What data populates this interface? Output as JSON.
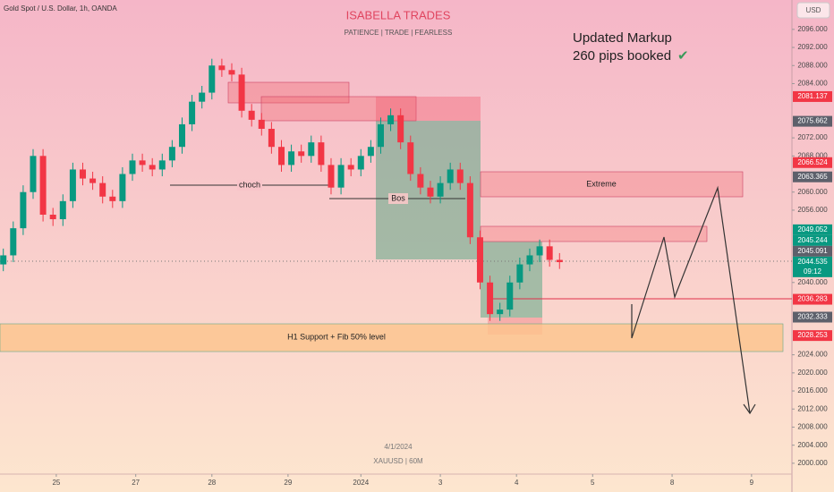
{
  "chart_data": {
    "type": "candlestick",
    "symbol": "Gold Spot / U.S. Dollar, 1h, OANDA",
    "title": "ISABELLA TRADES",
    "subtitle": "PATIENCE  |  TRADE  |  FEARLESS",
    "currency": "USD",
    "annotation": [
      "Updated Markup",
      "260 pips booked"
    ],
    "check": "✔",
    "labels": {
      "choch": "choch",
      "bos": "Bos",
      "extreme": "Extreme",
      "support": "H1 Support + Fib 50% level"
    },
    "footer": [
      "4/1/2024",
      "XAUUSD | 60M"
    ],
    "countdown": "09:12",
    "up_color": "#089981",
    "down_color": "#f23645",
    "xlim": [
      -17,
      222.2
    ],
    "xticks": [
      {
        "value": 0,
        "label": "25"
      },
      {
        "value": 24,
        "label": "27"
      },
      {
        "value": 47,
        "label": "28"
      },
      {
        "value": 70,
        "label": "29"
      },
      {
        "value": 92,
        "label": "2024"
      },
      {
        "value": 116,
        "label": "3"
      },
      {
        "value": 139,
        "label": "4"
      },
      {
        "value": 162,
        "label": "5"
      },
      {
        "value": 186,
        "label": "8"
      },
      {
        "value": 210,
        "label": "9"
      }
    ],
    "ylim": [
      1997.6,
      2102.5
    ],
    "yticks": [
      {
        "value": 2000,
        "label": "2000.000"
      },
      {
        "value": 2004,
        "label": "2004.000"
      },
      {
        "value": 2008,
        "label": "2008.000"
      },
      {
        "value": 2012,
        "label": "2012.000"
      },
      {
        "value": 2016,
        "label": "2016.000"
      },
      {
        "value": 2020,
        "label": "2020.000"
      },
      {
        "value": 2024,
        "label": "2024.000"
      },
      {
        "value": 2040,
        "label": "2040.000"
      },
      {
        "value": 2056,
        "label": "2056.000"
      },
      {
        "value": 2060,
        "label": "2060.000"
      },
      {
        "value": 2068,
        "label": "2068.000"
      },
      {
        "value": 2072,
        "label": "2072.000"
      },
      {
        "value": 2084,
        "label": "2084.000"
      },
      {
        "value": 2088,
        "label": "2088.000"
      },
      {
        "value": 2092,
        "label": "2092.000"
      },
      {
        "value": 2096,
        "label": "2096.000"
      }
    ],
    "x": [
      -16,
      -13,
      -10,
      -7,
      -4,
      -1,
      2,
      5,
      8,
      11,
      14,
      17,
      20,
      23,
      26,
      29,
      32,
      35,
      38,
      41,
      44,
      47,
      50,
      53,
      56,
      59,
      62,
      65,
      68,
      71,
      74,
      77,
      80,
      83,
      86,
      89,
      92,
      95,
      98,
      101,
      104,
      107,
      110,
      113,
      116,
      119,
      122,
      125,
      128,
      131,
      134,
      137,
      140,
      143,
      146,
      149,
      152
    ],
    "open": [
      2044,
      2046,
      2052,
      2060,
      2068,
      2055,
      2054,
      2058,
      2065,
      2063,
      2062,
      2059,
      2058,
      2064,
      2067,
      2066,
      2065,
      2067,
      2070,
      2075,
      2080,
      2082,
      2088,
      2087,
      2086,
      2078,
      2076,
      2074,
      2070,
      2066,
      2069,
      2068,
      2071,
      2066,
      2061,
      2066,
      2065,
      2068,
      2070,
      2075,
      2077,
      2071,
      2064,
      2061,
      2059,
      2062,
      2065,
      2062,
      2050,
      2040,
      2033,
      2034,
      2040,
      2044,
      2046,
      2048,
      2045
    ],
    "high": [
      2047.5,
      2053.5,
      2061.5,
      2069.5,
      2069.5,
      2056.5,
      2059.5,
      2066.5,
      2066.5,
      2064.5,
      2063.5,
      2060.5,
      2065.5,
      2068.5,
      2068.5,
      2067.5,
      2068.5,
      2071.5,
      2076.5,
      2081.5,
      2083.5,
      2089.5,
      2089.5,
      2088.5,
      2087.5,
      2079.5,
      2077.5,
      2075.5,
      2071.5,
      2070.5,
      2070.5,
      2072.5,
      2072.5,
      2067.5,
      2067.5,
      2067.5,
      2069.5,
      2071.5,
      2076.5,
      2078.5,
      2078.5,
      2072.5,
      2065.5,
      2062.5,
      2063.5,
      2066.5,
      2066.5,
      2063.5,
      2051.5,
      2041.5,
      2035.5,
      2041.5,
      2045.5,
      2047.5,
      2049.5,
      2049.5,
      2046.5
    ],
    "low": [
      2042.5,
      2044.5,
      2050.5,
      2058.5,
      2053.5,
      2052.5,
      2052.5,
      2056.5,
      2061.5,
      2060.5,
      2057.5,
      2056.5,
      2056.5,
      2062.5,
      2064.5,
      2063.5,
      2063.5,
      2065.5,
      2068.5,
      2073.5,
      2078.5,
      2080.5,
      2085.5,
      2084.5,
      2076.5,
      2074.5,
      2072.5,
      2068.5,
      2064.5,
      2064.5,
      2066.5,
      2066.5,
      2064.5,
      2059.5,
      2059.5,
      2063.5,
      2063.5,
      2066.5,
      2068.5,
      2073.5,
      2069.5,
      2062.5,
      2059.5,
      2057.5,
      2057.5,
      2060.5,
      2060.5,
      2048.5,
      2038.5,
      2031.5,
      2031.5,
      2032.5,
      2038.5,
      2042.5,
      2044.5,
      2043.5,
      2043
    ],
    "close": [
      2046,
      2052,
      2060,
      2068,
      2055,
      2054,
      2058,
      2065,
      2063,
      2062,
      2059,
      2058,
      2064,
      2067,
      2066,
      2065,
      2067,
      2070,
      2075,
      2080,
      2082,
      2088,
      2087,
      2086,
      2078,
      2076,
      2074,
      2070,
      2066,
      2069,
      2068,
      2071,
      2066,
      2061,
      2066,
      2065,
      2068,
      2070,
      2075,
      2077,
      2071,
      2064,
      2061,
      2059,
      2062,
      2065,
      2062,
      2050,
      2040,
      2033,
      2034,
      2040,
      2044,
      2046,
      2048,
      2045,
      2044.5
    ],
    "price_tags": [
      {
        "value": 2081.137,
        "label": "2081.137",
        "color": "#f23645"
      },
      {
        "value": 2075.662,
        "label": "2075.662",
        "color": "#5d606b"
      },
      {
        "value": 2066.524,
        "label": "2066.524",
        "color": "#f23645"
      },
      {
        "value": 2063.365,
        "label": "2063.365",
        "color": "#5d606b"
      },
      {
        "value": 2049.052,
        "label": "2049.052",
        "color": "#089981"
      },
      {
        "value": 2045.244,
        "label": "2045.244",
        "color": "#089981"
      },
      {
        "value": 2045.091,
        "label": "2045.091",
        "color": "#5d606b"
      },
      {
        "value": 2044.535,
        "label": "2044.535",
        "color": "#089981"
      },
      {
        "value": 2036.283,
        "label": "2036.283",
        "color": "#f23645"
      },
      {
        "value": 2032.333,
        "label": "2032.333",
        "color": "#5d606b"
      },
      {
        "value": 2028.253,
        "label": "2028.253",
        "color": "#f23645"
      }
    ]
  }
}
